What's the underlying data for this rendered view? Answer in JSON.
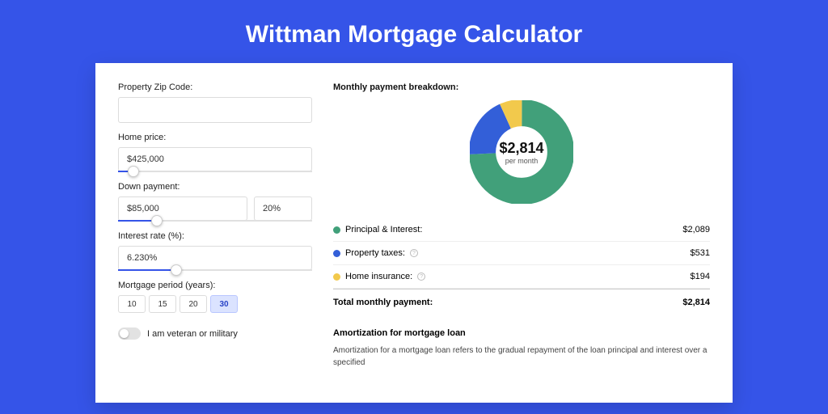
{
  "title": "Wittman Mortgage Calculator",
  "colors": {
    "page_bg": "#3554e8",
    "card_bg": "#ffffff",
    "text": "#222222",
    "muted": "#555555",
    "border": "#dcdcdc",
    "slider_fill": "#3554e8",
    "period_active_bg": "#dbe3ff",
    "period_active_border": "#b9c6ff"
  },
  "form": {
    "zip_label": "Property Zip Code:",
    "zip_value": "",
    "home_price_label": "Home price:",
    "home_price_value": "$425,000",
    "home_price_slider_pct": 8,
    "down_payment_label": "Down payment:",
    "down_payment_value": "$85,000",
    "down_payment_pct_value": "20%",
    "down_payment_slider_pct": 20,
    "interest_label": "Interest rate (%):",
    "interest_value": "6.230%",
    "interest_slider_pct": 30,
    "period_label": "Mortgage period (years):",
    "periods": [
      "10",
      "15",
      "20",
      "30"
    ],
    "period_active_index": 3,
    "veteran_label": "I am veteran or military",
    "veteran_on": false
  },
  "breakdown": {
    "title": "Monthly payment breakdown:",
    "donut": {
      "center_value": "$2,814",
      "center_sub": "per month",
      "slices": [
        {
          "name": "principal_interest",
          "pct": 74.2,
          "color": "#41a07a"
        },
        {
          "name": "property_taxes",
          "pct": 18.9,
          "color": "#335fd8"
        },
        {
          "name": "home_insurance",
          "pct": 6.9,
          "color": "#f2c94c"
        }
      ],
      "ring_thickness_ratio": 0.26
    },
    "items": [
      {
        "label": "Principal & Interest:",
        "value": "$2,089",
        "color": "#41a07a",
        "info": false
      },
      {
        "label": "Property taxes:",
        "value": "$531",
        "color": "#335fd8",
        "info": true
      },
      {
        "label": "Home insurance:",
        "value": "$194",
        "color": "#f2c94c",
        "info": true
      }
    ],
    "total_label": "Total monthly payment:",
    "total_value": "$2,814"
  },
  "amortization": {
    "title": "Amortization for mortgage loan",
    "text": "Amortization for a mortgage loan refers to the gradual repayment of the loan principal and interest over a specified"
  }
}
